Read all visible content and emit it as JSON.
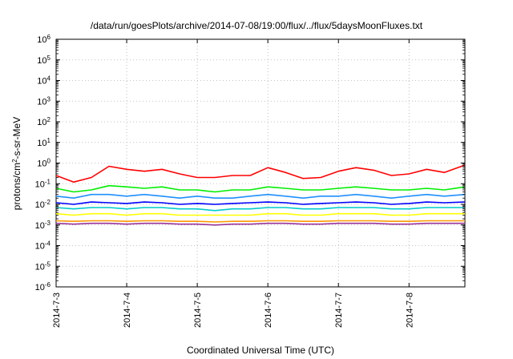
{
  "chart_data": {
    "type": "line",
    "title": "/data/run/goesPlots/archive/2014-07-08/19:00/flux/../flux/5daysMoonFluxes.txt",
    "xlabel": "Coordinated Universal Time (UTC)",
    "ylabel_parts": {
      "prefix": "protons/cm",
      "sup": "2",
      "suffix": "-s-sr-MeV"
    },
    "yscale": "log",
    "ylim": [
      1e-06,
      1000000.0
    ],
    "y_ticks": [
      {
        "value": 1e-06,
        "base": "10",
        "exp": "-6"
      },
      {
        "value": 1e-05,
        "base": "10",
        "exp": "-5"
      },
      {
        "value": 0.0001,
        "base": "10",
        "exp": "-4"
      },
      {
        "value": 0.001,
        "base": "10",
        "exp": "-3"
      },
      {
        "value": 0.01,
        "base": "10",
        "exp": "-2"
      },
      {
        "value": 0.1,
        "base": "10",
        "exp": "-1"
      },
      {
        "value": 1,
        "base": "10",
        "exp": "0"
      },
      {
        "value": 10,
        "base": "10",
        "exp": "1"
      },
      {
        "value": 100,
        "base": "10",
        "exp": "2"
      },
      {
        "value": 1000,
        "base": "10",
        "exp": "3"
      },
      {
        "value": 10000,
        "base": "10",
        "exp": "4"
      },
      {
        "value": 100000,
        "base": "10",
        "exp": "5"
      },
      {
        "value": 1000000,
        "base": "10",
        "exp": "6"
      }
    ],
    "xlim": [
      "2014-07-03T00:00",
      "2014-07-08T19:00"
    ],
    "x_ticks": [
      {
        "value": "2014-07-03T00:00",
        "label": "2014-7-3"
      },
      {
        "value": "2014-07-04T00:00",
        "label": "2014-7-4"
      },
      {
        "value": "2014-07-05T00:00",
        "label": "2014-7-5"
      },
      {
        "value": "2014-07-06T00:00",
        "label": "2014-7-6"
      },
      {
        "value": "2014-07-07T00:00",
        "label": "2014-7-7"
      },
      {
        "value": "2014-07-08T00:00",
        "label": "2014-7-8"
      }
    ],
    "grid": true,
    "legend": "none",
    "series": [
      {
        "color": "#ff0000",
        "x": [
          "2014-07-03T00:00",
          "2014-07-03T06:00",
          "2014-07-03T12:00",
          "2014-07-03T18:00",
          "2014-07-04T00:00",
          "2014-07-04T06:00",
          "2014-07-04T12:00",
          "2014-07-04T18:00",
          "2014-07-05T00:00",
          "2014-07-05T06:00",
          "2014-07-05T12:00",
          "2014-07-05T18:00",
          "2014-07-06T00:00",
          "2014-07-06T06:00",
          "2014-07-06T12:00",
          "2014-07-06T18:00",
          "2014-07-07T00:00",
          "2014-07-07T06:00",
          "2014-07-07T12:00",
          "2014-07-07T18:00",
          "2014-07-08T00:00",
          "2014-07-08T06:00",
          "2014-07-08T12:00",
          "2014-07-08T19:00"
        ],
        "values": [
          0.25,
          0.12,
          0.2,
          0.7,
          0.5,
          0.4,
          0.5,
          0.3,
          0.2,
          0.2,
          0.25,
          0.25,
          0.6,
          0.35,
          0.18,
          0.2,
          0.4,
          0.6,
          0.45,
          0.25,
          0.3,
          0.5,
          0.35,
          0.8
        ]
      },
      {
        "color": "#00ee00",
        "x": [
          "2014-07-03T00:00",
          "2014-07-03T06:00",
          "2014-07-03T12:00",
          "2014-07-03T18:00",
          "2014-07-04T00:00",
          "2014-07-04T06:00",
          "2014-07-04T12:00",
          "2014-07-04T18:00",
          "2014-07-05T00:00",
          "2014-07-05T06:00",
          "2014-07-05T12:00",
          "2014-07-05T18:00",
          "2014-07-06T00:00",
          "2014-07-06T06:00",
          "2014-07-06T12:00",
          "2014-07-06T18:00",
          "2014-07-07T00:00",
          "2014-07-07T06:00",
          "2014-07-07T12:00",
          "2014-07-07T18:00",
          "2014-07-08T00:00",
          "2014-07-08T06:00",
          "2014-07-08T12:00",
          "2014-07-08T19:00"
        ],
        "values": [
          0.06,
          0.04,
          0.05,
          0.08,
          0.07,
          0.06,
          0.07,
          0.05,
          0.05,
          0.04,
          0.05,
          0.05,
          0.07,
          0.06,
          0.05,
          0.05,
          0.06,
          0.07,
          0.06,
          0.05,
          0.05,
          0.06,
          0.05,
          0.07
        ]
      },
      {
        "color": "#1e90ff",
        "x": [
          "2014-07-03T00:00",
          "2014-07-03T06:00",
          "2014-07-03T12:00",
          "2014-07-03T18:00",
          "2014-07-04T00:00",
          "2014-07-04T06:00",
          "2014-07-04T12:00",
          "2014-07-04T18:00",
          "2014-07-05T00:00",
          "2014-07-05T06:00",
          "2014-07-05T12:00",
          "2014-07-05T18:00",
          "2014-07-06T00:00",
          "2014-07-06T06:00",
          "2014-07-06T12:00",
          "2014-07-06T18:00",
          "2014-07-07T00:00",
          "2014-07-07T06:00",
          "2014-07-07T12:00",
          "2014-07-07T18:00",
          "2014-07-08T00:00",
          "2014-07-08T06:00",
          "2014-07-08T12:00",
          "2014-07-08T19:00"
        ],
        "values": [
          0.025,
          0.02,
          0.03,
          0.03,
          0.025,
          0.03,
          0.025,
          0.02,
          0.025,
          0.02,
          0.02,
          0.025,
          0.03,
          0.025,
          0.02,
          0.025,
          0.025,
          0.03,
          0.025,
          0.02,
          0.025,
          0.03,
          0.025,
          0.03
        ]
      },
      {
        "color": "#0000ff",
        "x": [
          "2014-07-03T00:00",
          "2014-07-03T06:00",
          "2014-07-03T12:00",
          "2014-07-03T18:00",
          "2014-07-04T00:00",
          "2014-07-04T06:00",
          "2014-07-04T12:00",
          "2014-07-04T18:00",
          "2014-07-05T00:00",
          "2014-07-05T06:00",
          "2014-07-05T12:00",
          "2014-07-05T18:00",
          "2014-07-06T00:00",
          "2014-07-06T06:00",
          "2014-07-06T12:00",
          "2014-07-06T18:00",
          "2014-07-07T00:00",
          "2014-07-07T06:00",
          "2014-07-07T12:00",
          "2014-07-07T18:00",
          "2014-07-08T00:00",
          "2014-07-08T06:00",
          "2014-07-08T12:00",
          "2014-07-08T19:00"
        ],
        "values": [
          0.012,
          0.01,
          0.013,
          0.012,
          0.011,
          0.013,
          0.012,
          0.01,
          0.011,
          0.01,
          0.011,
          0.012,
          0.013,
          0.012,
          0.01,
          0.011,
          0.012,
          0.013,
          0.012,
          0.01,
          0.011,
          0.013,
          0.012,
          0.013
        ]
      },
      {
        "color": "#00cccc",
        "x": [
          "2014-07-03T00:00",
          "2014-07-03T06:00",
          "2014-07-03T12:00",
          "2014-07-03T18:00",
          "2014-07-04T00:00",
          "2014-07-04T06:00",
          "2014-07-04T12:00",
          "2014-07-04T18:00",
          "2014-07-05T00:00",
          "2014-07-05T06:00",
          "2014-07-05T12:00",
          "2014-07-05T18:00",
          "2014-07-06T00:00",
          "2014-07-06T06:00",
          "2014-07-06T12:00",
          "2014-07-06T18:00",
          "2014-07-07T00:00",
          "2014-07-07T06:00",
          "2014-07-07T12:00",
          "2014-07-07T18:00",
          "2014-07-08T00:00",
          "2014-07-08T06:00",
          "2014-07-08T12:00",
          "2014-07-08T19:00"
        ],
        "values": [
          0.007,
          0.006,
          0.007,
          0.007,
          0.006,
          0.007,
          0.007,
          0.006,
          0.006,
          0.005,
          0.006,
          0.006,
          0.007,
          0.007,
          0.006,
          0.006,
          0.007,
          0.007,
          0.007,
          0.006,
          0.006,
          0.007,
          0.007,
          0.007
        ]
      },
      {
        "color": "#ffff00",
        "x": [
          "2014-07-03T00:00",
          "2014-07-03T06:00",
          "2014-07-03T12:00",
          "2014-07-03T18:00",
          "2014-07-04T00:00",
          "2014-07-04T06:00",
          "2014-07-04T12:00",
          "2014-07-04T18:00",
          "2014-07-05T00:00",
          "2014-07-05T06:00",
          "2014-07-05T12:00",
          "2014-07-05T18:00",
          "2014-07-06T00:00",
          "2014-07-06T06:00",
          "2014-07-06T12:00",
          "2014-07-06T18:00",
          "2014-07-07T00:00",
          "2014-07-07T06:00",
          "2014-07-07T12:00",
          "2014-07-07T18:00",
          "2014-07-08T00:00",
          "2014-07-08T06:00",
          "2014-07-08T12:00",
          "2014-07-08T19:00"
        ],
        "values": [
          0.0035,
          0.003,
          0.0035,
          0.0035,
          0.003,
          0.0035,
          0.0035,
          0.003,
          0.003,
          0.003,
          0.003,
          0.003,
          0.0035,
          0.0035,
          0.003,
          0.003,
          0.0035,
          0.0035,
          0.0035,
          0.003,
          0.003,
          0.0035,
          0.0035,
          0.0035
        ]
      },
      {
        "color": "#ff9900",
        "x": [
          "2014-07-03T00:00",
          "2014-07-03T06:00",
          "2014-07-03T12:00",
          "2014-07-03T18:00",
          "2014-07-04T00:00",
          "2014-07-04T06:00",
          "2014-07-04T12:00",
          "2014-07-04T18:00",
          "2014-07-05T00:00",
          "2014-07-05T06:00",
          "2014-07-05T12:00",
          "2014-07-05T18:00",
          "2014-07-06T00:00",
          "2014-07-06T06:00",
          "2014-07-06T12:00",
          "2014-07-06T18:00",
          "2014-07-07T00:00",
          "2014-07-07T06:00",
          "2014-07-07T12:00",
          "2014-07-07T18:00",
          "2014-07-08T00:00",
          "2014-07-08T06:00",
          "2014-07-08T12:00",
          "2014-07-08T19:00"
        ],
        "values": [
          0.0016,
          0.0015,
          0.0016,
          0.0016,
          0.0015,
          0.0016,
          0.0016,
          0.0015,
          0.0015,
          0.0014,
          0.0015,
          0.0015,
          0.0016,
          0.0016,
          0.0015,
          0.0015,
          0.0016,
          0.0016,
          0.0016,
          0.0015,
          0.0015,
          0.0016,
          0.0016,
          0.0016
        ]
      },
      {
        "color": "#993399",
        "x": [
          "2014-07-03T00:00",
          "2014-07-03T06:00",
          "2014-07-03T12:00",
          "2014-07-03T18:00",
          "2014-07-04T00:00",
          "2014-07-04T06:00",
          "2014-07-04T12:00",
          "2014-07-04T18:00",
          "2014-07-05T00:00",
          "2014-07-05T06:00",
          "2014-07-05T12:00",
          "2014-07-05T18:00",
          "2014-07-06T00:00",
          "2014-07-06T06:00",
          "2014-07-06T12:00",
          "2014-07-06T18:00",
          "2014-07-07T00:00",
          "2014-07-07T06:00",
          "2014-07-07T12:00",
          "2014-07-07T18:00",
          "2014-07-08T00:00",
          "2014-07-08T06:00",
          "2014-07-08T12:00",
          "2014-07-08T19:00"
        ],
        "values": [
          0.0012,
          0.0011,
          0.0012,
          0.0012,
          0.0011,
          0.0012,
          0.0012,
          0.0011,
          0.0011,
          0.001,
          0.0011,
          0.0011,
          0.0012,
          0.0012,
          0.0011,
          0.0011,
          0.0012,
          0.0012,
          0.0012,
          0.0011,
          0.0011,
          0.0012,
          0.0012,
          0.0012
        ]
      }
    ]
  }
}
